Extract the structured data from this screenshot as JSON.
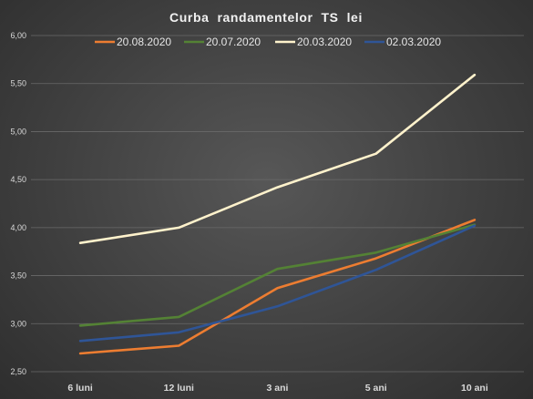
{
  "chart_data": {
    "type": "line",
    "title": "Curba  randamentelor  TS  lei",
    "categories": [
      "6 luni",
      "12 luni",
      "3 ani",
      "5 ani",
      "10 ani"
    ],
    "ylim": [
      2.5,
      6.0
    ],
    "ystep": 0.5,
    "ytick_labels": [
      "2,50",
      "3,00",
      "3,50",
      "4,00",
      "4,50",
      "5,00",
      "5,50",
      "6,00"
    ],
    "grid": true,
    "legend_position": "top",
    "series": [
      {
        "name": "20.08.2020",
        "color": "#ed7d31",
        "values": [
          2.69,
          2.77,
          3.37,
          3.68,
          4.08
        ]
      },
      {
        "name": "20.07.2020",
        "color": "#548235",
        "values": [
          2.98,
          3.07,
          3.57,
          3.74,
          4.03
        ]
      },
      {
        "name": "20.03.2020",
        "color": "#fff2cc",
        "values": [
          3.84,
          4.0,
          4.42,
          4.77,
          5.59
        ]
      },
      {
        "name": "02.03.2020",
        "color": "#2f5597",
        "values": [
          2.82,
          2.91,
          3.18,
          3.56,
          4.02
        ]
      }
    ]
  }
}
